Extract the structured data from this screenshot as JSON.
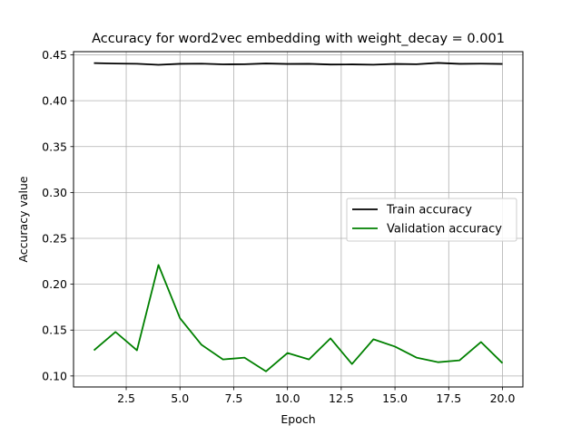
{
  "chart_data": {
    "type": "line",
    "title": "Accuracy for word2vec embedding with weight_decay = 0.001",
    "xlabel": "Epoch",
    "ylabel": "Accuracy value",
    "xlim": [
      0.05,
      20.95
    ],
    "ylim": [
      0.088,
      0.4535
    ],
    "x_ticks": [
      2.5,
      5.0,
      7.5,
      10.0,
      12.5,
      15.0,
      17.5,
      20.0
    ],
    "x_tick_labels": [
      "2.5",
      "5.0",
      "7.5",
      "10.0",
      "12.5",
      "15.0",
      "17.5",
      "20.0"
    ],
    "y_ticks": [
      0.1,
      0.15,
      0.2,
      0.25,
      0.3,
      0.35,
      0.4,
      0.45
    ],
    "y_tick_labels": [
      "0.10",
      "0.15",
      "0.20",
      "0.25",
      "0.30",
      "0.35",
      "0.40",
      "0.45"
    ],
    "grid": true,
    "legend_position": "center-right",
    "x": [
      1,
      2,
      3,
      4,
      5,
      6,
      7,
      8,
      9,
      10,
      11,
      12,
      13,
      14,
      15,
      16,
      17,
      18,
      19,
      20
    ],
    "series": [
      {
        "name": "Train accuracy",
        "color": "#000000",
        "values": [
          0.441,
          0.4405,
          0.4403,
          0.4392,
          0.4402,
          0.4404,
          0.4397,
          0.4398,
          0.4406,
          0.4401,
          0.4402,
          0.4395,
          0.4396,
          0.4393,
          0.4401,
          0.4398,
          0.4412,
          0.4402,
          0.4404,
          0.4401
        ]
      },
      {
        "name": "Validation accuracy",
        "color": "#008000",
        "values": [
          0.128,
          0.148,
          0.128,
          0.221,
          0.163,
          0.134,
          0.118,
          0.12,
          0.105,
          0.125,
          0.118,
          0.141,
          0.113,
          0.14,
          0.132,
          0.12,
          0.115,
          0.117,
          0.137,
          0.114
        ]
      }
    ]
  }
}
